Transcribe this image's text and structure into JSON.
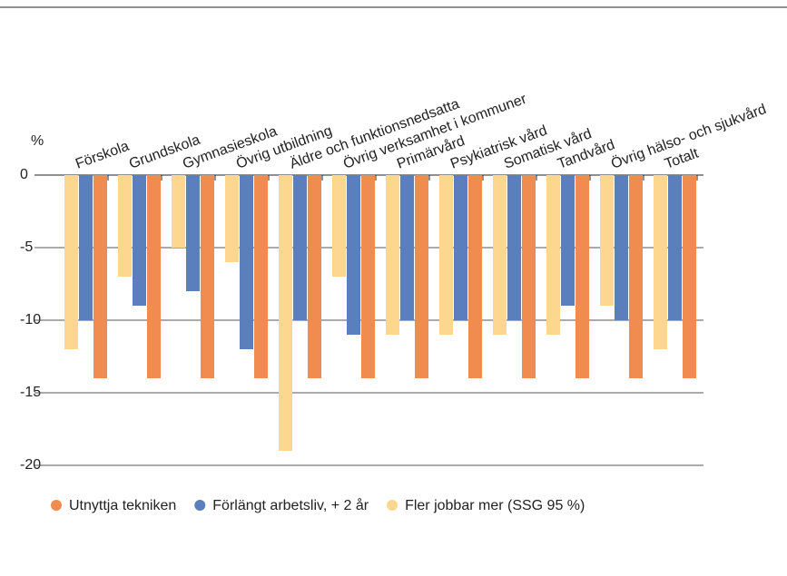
{
  "chart_data": {
    "type": "bar",
    "y_unit": "%",
    "categories": [
      "Förskola",
      "Grundskola",
      "Gymnasieskola",
      "Övrig utbildning",
      "Äldre och funktionsnedsatta",
      "Övrig verksamhet i kommuner",
      "Primärvård",
      "Psykiatrisk vård",
      "Somatisk vård",
      "Tandvård",
      "Övrig hälso- och sjukvård",
      "Totalt"
    ],
    "series": [
      {
        "name": "Fler jobbar mer (SSG 95 %)",
        "color": "#fdd68f",
        "values": [
          -12,
          -7,
          -5,
          -6,
          -19,
          -7,
          -11,
          -11,
          -11,
          -11,
          -9,
          -12
        ]
      },
      {
        "name": "Förlängt arbetsliv, + 2 år",
        "color": "#5b7fbd",
        "values": [
          -10,
          -9,
          -8,
          -12,
          -10,
          -11,
          -10,
          -10,
          -10,
          -9,
          -10,
          -10
        ]
      },
      {
        "name": "Utnyttja tekniken",
        "color": "#f08c4f",
        "values": [
          -14,
          -14,
          -14,
          -14,
          -14,
          -14,
          -14,
          -14,
          -14,
          -14,
          -14,
          -14
        ]
      }
    ],
    "legend_order": [
      2,
      1,
      0
    ],
    "ylim": [
      -20,
      0
    ],
    "yticks": [
      0,
      -5,
      -10,
      -15,
      -20
    ],
    "grid": true
  }
}
